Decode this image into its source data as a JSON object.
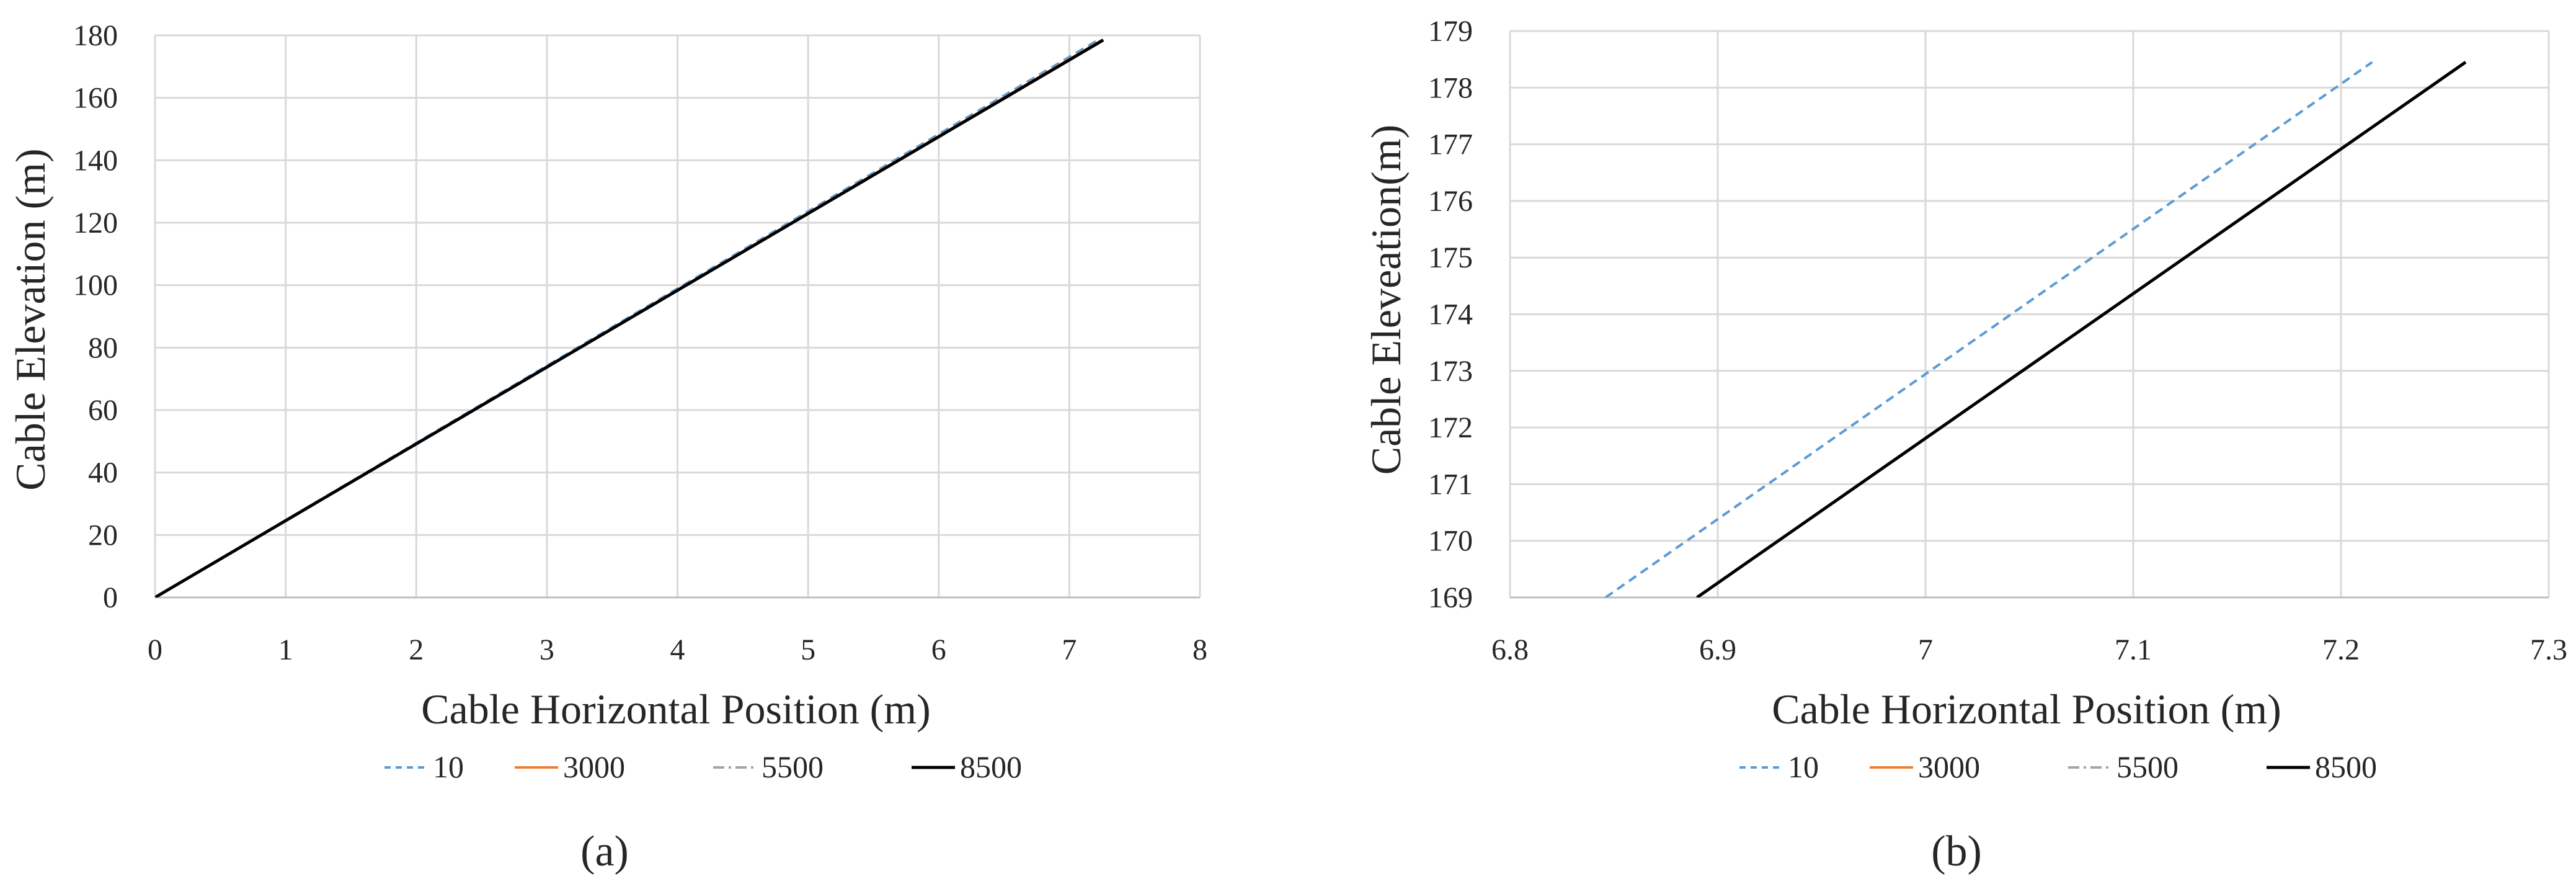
{
  "chart_data": [
    {
      "type": "line",
      "panel_label": "(a)",
      "xlabel": "Cable Horizontal Position (m)",
      "ylabel": "Cable Elevation (m)",
      "xlim": [
        0,
        8
      ],
      "ylim": [
        0,
        180
      ],
      "x_ticks": [
        "0",
        "1",
        "2",
        "3",
        "4",
        "5",
        "6",
        "7",
        "8"
      ],
      "y_ticks": [
        "0",
        "20",
        "40",
        "60",
        "80",
        "100",
        "120",
        "140",
        "160",
        "180"
      ],
      "grid": true,
      "legend_position": "bottom",
      "series": [
        {
          "name": "10",
          "color": "#5b9bd5",
          "dash": "dashed",
          "points": [
            [
              0,
              0
            ],
            [
              7.22,
              178.5
            ]
          ]
        },
        {
          "name": "3000",
          "color": "#ed7d31",
          "dash": "solid",
          "points": [
            [
              0,
              0
            ],
            [
              7.25,
              178.5
            ]
          ]
        },
        {
          "name": "5500",
          "color": "#a5a5a5",
          "dash": "dashdot",
          "points": [
            [
              0,
              0
            ],
            [
              7.26,
              178.5
            ]
          ]
        },
        {
          "name": "8500",
          "color": "#000000",
          "dash": "solid",
          "points": [
            [
              0,
              0
            ],
            [
              7.26,
              178.5
            ]
          ]
        }
      ]
    },
    {
      "type": "line",
      "panel_label": "(b)",
      "xlabel": "Cable Horizontal Position (m)",
      "ylabel": "Cable Eleveation(m)",
      "xlim": [
        6.8,
        7.3
      ],
      "ylim": [
        169,
        179
      ],
      "x_ticks": [
        "6.8",
        "6.9",
        "7",
        "7.1",
        "7.2",
        "7.3"
      ],
      "y_ticks": [
        "169",
        "170",
        "171",
        "172",
        "173",
        "174",
        "175",
        "176",
        "177",
        "178",
        "179"
      ],
      "grid": true,
      "legend_position": "bottom",
      "series": [
        {
          "name": "10",
          "color": "#5b9bd5",
          "dash": "dashed",
          "points": [
            [
              6.846,
              169
            ],
            [
              7.215,
              178.45
            ]
          ]
        },
        {
          "name": "3000",
          "color": "#ed7d31",
          "dash": "solid",
          "points": [
            [
              6.89,
              169
            ],
            [
              7.26,
              178.45
            ]
          ]
        },
        {
          "name": "5500",
          "color": "#a5a5a5",
          "dash": "dashdot",
          "points": [
            [
              6.89,
              169
            ],
            [
              7.26,
              178.45
            ]
          ]
        },
        {
          "name": "8500",
          "color": "#000000",
          "dash": "solid",
          "points": [
            [
              6.89,
              169
            ],
            [
              7.26,
              178.45
            ]
          ]
        }
      ]
    }
  ]
}
